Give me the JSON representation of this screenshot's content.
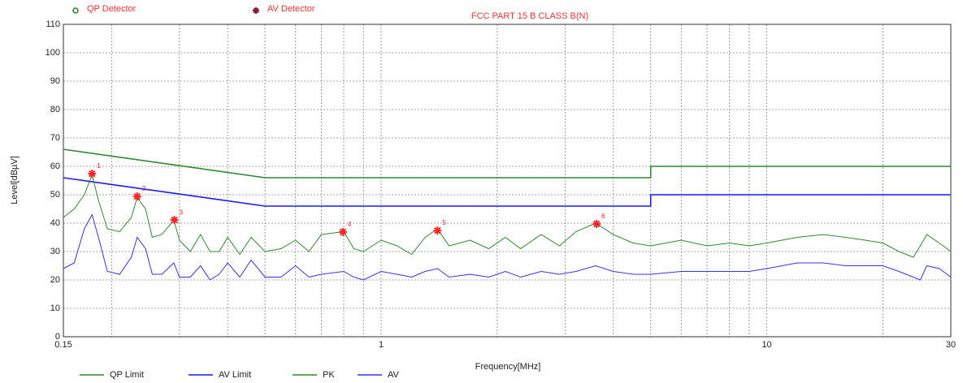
{
  "chart_data": {
    "type": "line",
    "title": "FCC PART 15 B CLASS B(N)",
    "xlabel": "Frequency[MHz]",
    "ylabel": "Level[dBµV]",
    "xscale": "log",
    "xlim": [
      0.15,
      30
    ],
    "xticks": [
      0.15,
      1,
      10,
      30
    ],
    "x_minor_ticks": [
      0.2,
      0.3,
      0.4,
      0.5,
      0.6,
      0.7,
      0.8,
      0.9,
      2,
      3,
      4,
      5,
      6,
      7,
      8,
      9,
      20
    ],
    "ylim": [
      0,
      110
    ],
    "yticks": [
      0,
      10,
      20,
      30,
      40,
      50,
      60,
      70,
      80,
      90,
      100,
      110
    ],
    "grid": true,
    "detector_legend": [
      {
        "name": "QP Detector",
        "color": "#1f8a1f",
        "symbol": "circle"
      },
      {
        "name": "AV Detector",
        "color": "#8b1a3a",
        "symbol": "star"
      }
    ],
    "series": [
      {
        "name": "QP Limit",
        "color": "#2e8b2e",
        "x": [
          0.15,
          0.5,
          5,
          5,
          30
        ],
        "values": [
          66,
          56,
          56,
          60,
          60
        ]
      },
      {
        "name": "AV Limit",
        "color": "#1a1aff",
        "x": [
          0.15,
          0.5,
          5,
          5,
          30
        ],
        "values": [
          56,
          46,
          46,
          50,
          50
        ]
      },
      {
        "name": "PK",
        "color": "#2e8b2e",
        "x": [
          0.15,
          0.16,
          0.17,
          0.178,
          0.185,
          0.195,
          0.21,
          0.225,
          0.233,
          0.245,
          0.255,
          0.27,
          0.29,
          0.3,
          0.32,
          0.34,
          0.36,
          0.38,
          0.4,
          0.43,
          0.46,
          0.5,
          0.55,
          0.6,
          0.65,
          0.7,
          0.8,
          0.85,
          0.9,
          1.0,
          1.1,
          1.2,
          1.3,
          1.4,
          1.5,
          1.7,
          1.9,
          2.1,
          2.3,
          2.6,
          2.9,
          3.2,
          3.6,
          4.0,
          4.5,
          5.0,
          6,
          7,
          8,
          9,
          10,
          12,
          14,
          16,
          18,
          20,
          22,
          24,
          25,
          26,
          28,
          30
        ],
        "values": [
          42,
          45,
          50,
          57,
          48,
          38,
          37,
          42,
          49,
          45,
          35,
          36,
          41,
          34,
          30,
          36,
          30,
          30,
          35,
          29,
          35,
          30,
          31,
          34,
          30,
          36,
          37,
          31,
          30,
          34,
          32,
          29,
          35,
          38,
          32,
          34,
          31,
          35,
          31,
          36,
          32,
          37,
          40,
          36,
          33,
          32,
          34,
          32,
          33,
          32,
          33,
          35,
          36,
          35,
          34,
          33,
          30,
          28,
          32,
          36,
          33,
          30
        ]
      },
      {
        "name": "AV",
        "color": "#3333ff",
        "x": [
          0.15,
          0.16,
          0.17,
          0.178,
          0.185,
          0.195,
          0.21,
          0.225,
          0.233,
          0.245,
          0.255,
          0.27,
          0.29,
          0.3,
          0.32,
          0.34,
          0.36,
          0.38,
          0.4,
          0.43,
          0.46,
          0.5,
          0.55,
          0.6,
          0.65,
          0.7,
          0.8,
          0.85,
          0.9,
          1.0,
          1.1,
          1.2,
          1.3,
          1.4,
          1.5,
          1.7,
          1.9,
          2.1,
          2.3,
          2.6,
          2.9,
          3.2,
          3.6,
          4.0,
          4.5,
          5.0,
          6,
          7,
          8,
          9,
          10,
          12,
          14,
          16,
          18,
          20,
          22,
          24,
          25,
          26,
          28,
          30
        ],
        "values": [
          24,
          26,
          38,
          43,
          35,
          23,
          22,
          28,
          35,
          31,
          22,
          22,
          26,
          21,
          21,
          25,
          20,
          22,
          26,
          21,
          27,
          21,
          21,
          25,
          21,
          22,
          23,
          21,
          20,
          23,
          22,
          21,
          23,
          24,
          21,
          22,
          21,
          23,
          21,
          23,
          22,
          23,
          25,
          23,
          22,
          22,
          23,
          23,
          23,
          23,
          24,
          26,
          26,
          25,
          25,
          25,
          23,
          21,
          20,
          25,
          24,
          21
        ]
      }
    ],
    "markers": {
      "color": "#ff2222",
      "x": [
        0.178,
        0.233,
        0.291,
        0.796,
        1.4,
        3.62
      ],
      "values": [
        57.4,
        49.4,
        41.1,
        36.9,
        37.4,
        39.7
      ],
      "labels": [
        "1",
        "2",
        "3",
        "4",
        "5",
        "6"
      ]
    }
  }
}
